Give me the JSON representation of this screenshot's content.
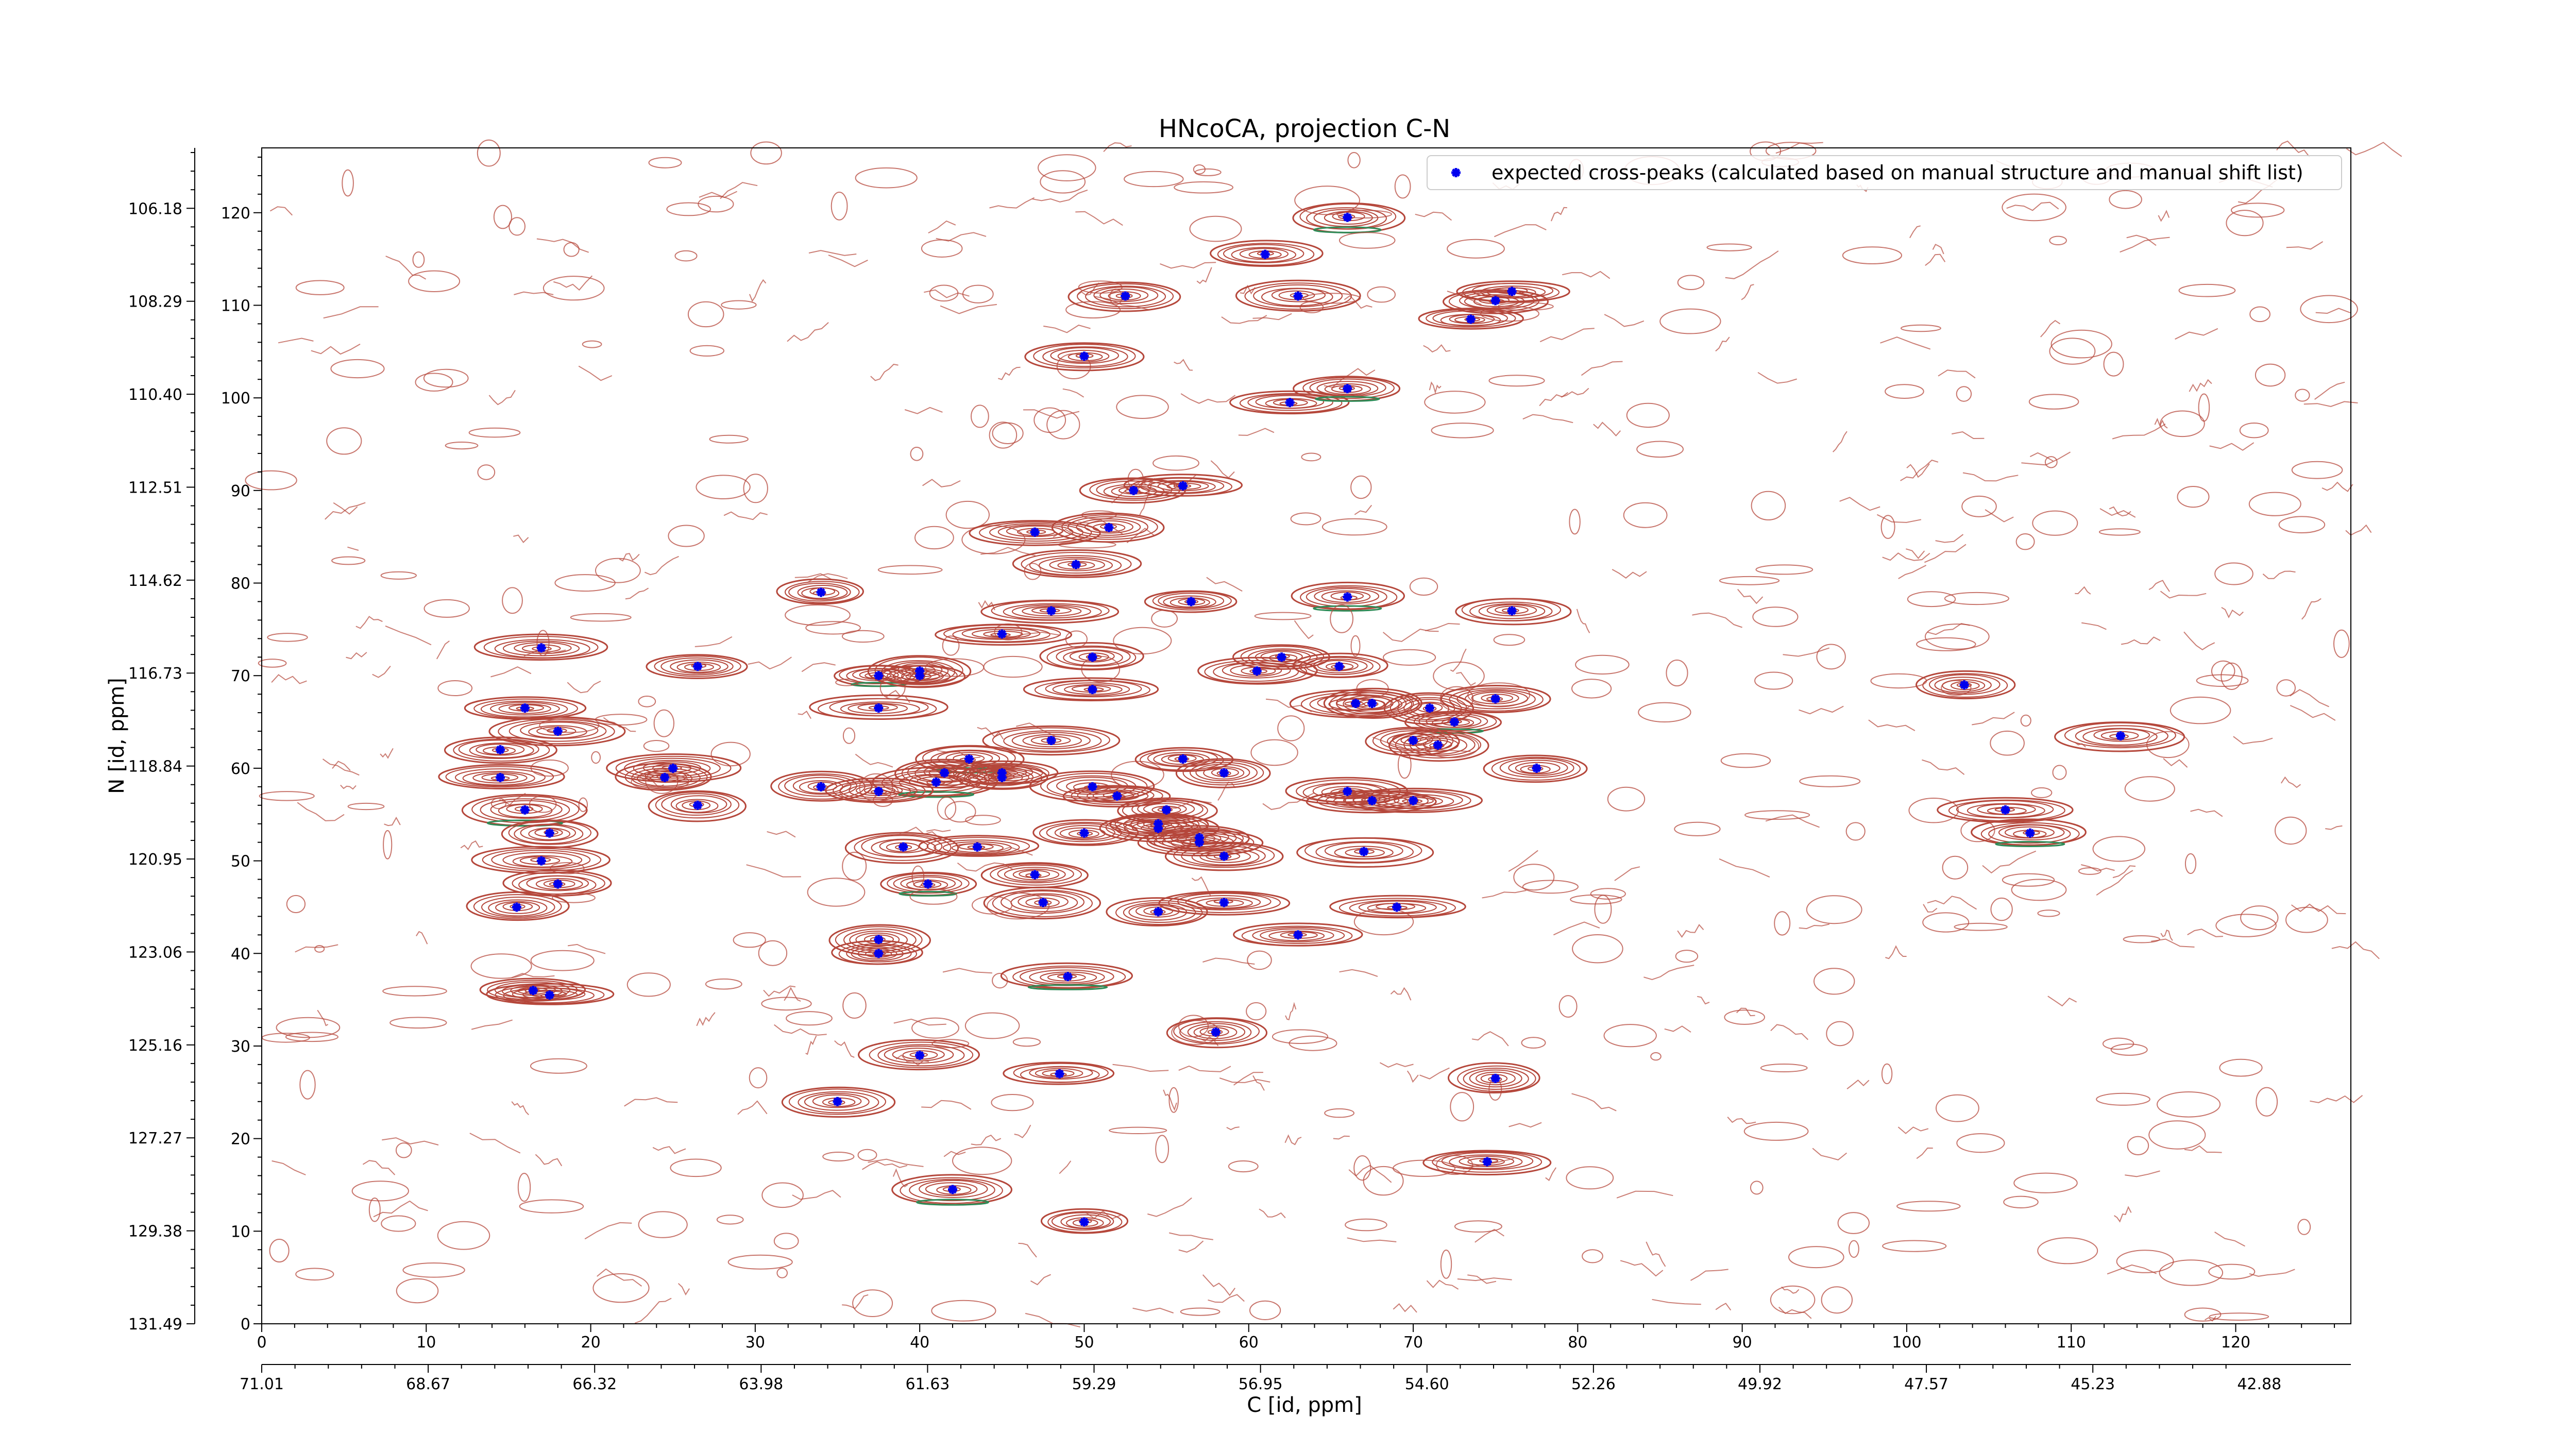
{
  "chart_data": {
    "type": "scatter",
    "title": "HNcoCA, projection C-N",
    "xlabel": "C [id, ppm]",
    "ylabel": "N [id, ppm]",
    "xlim": [
      0,
      127
    ],
    "ylim": [
      0,
      127
    ],
    "x_ticks": [
      "0",
      "10",
      "20",
      "30",
      "40",
      "50",
      "60",
      "70",
      "80",
      "90",
      "100",
      "110",
      "120"
    ],
    "y_ticks": [
      "0",
      "10",
      "20",
      "30",
      "40",
      "50",
      "60",
      "70",
      "80",
      "90",
      "100",
      "110",
      "120"
    ],
    "x_ppm_ticks": [
      "71.01",
      "68.67",
      "66.32",
      "63.98",
      "61.63",
      "59.29",
      "56.95",
      "54.60",
      "52.26",
      "49.92",
      "47.57",
      "45.23",
      "42.88"
    ],
    "y_ppm_ticks": [
      "131.49",
      "129.38",
      "127.27",
      "125.16",
      "123.06",
      "120.95",
      "118.84",
      "116.73",
      "114.62",
      "112.51",
      "110.40",
      "108.29",
      "106.18"
    ],
    "legend": {
      "entries": [
        "expected cross-peaks (calculated based on manual structure and manual shift list)"
      ],
      "placement": "top-right"
    },
    "colors": {
      "peaks": "#0000ee",
      "positive_contour": "#b5473b",
      "negative_contour": "#2e8b57"
    },
    "series": [
      {
        "name": "expected cross-peaks (calculated based on manual structure and manual shift list)",
        "points": [
          [
            66.0,
            119.5
          ],
          [
            61.0,
            115.5
          ],
          [
            52.5,
            111.0
          ],
          [
            63.0,
            111.0
          ],
          [
            73.5,
            108.5
          ],
          [
            75.0,
            110.5
          ],
          [
            76.0,
            111.5
          ],
          [
            50.0,
            104.5
          ],
          [
            62.5,
            99.5
          ],
          [
            66.0,
            101.0
          ],
          [
            53.0,
            90.0
          ],
          [
            56.0,
            90.5
          ],
          [
            47.0,
            85.5
          ],
          [
            51.5,
            86.0
          ],
          [
            49.5,
            82.0
          ],
          [
            34.0,
            79.0
          ],
          [
            48.0,
            77.0
          ],
          [
            56.5,
            78.0
          ],
          [
            66.0,
            78.5
          ],
          [
            76.0,
            77.0
          ],
          [
            45.0,
            74.5
          ],
          [
            17.0,
            73.0
          ],
          [
            26.5,
            71.0
          ],
          [
            50.5,
            72.0
          ],
          [
            62.0,
            72.0
          ],
          [
            65.5,
            71.0
          ],
          [
            60.5,
            70.5
          ],
          [
            37.5,
            70.0
          ],
          [
            40.0,
            70.5
          ],
          [
            40.0,
            70.0
          ],
          [
            50.5,
            68.5
          ],
          [
            103.5,
            69.0
          ],
          [
            66.5,
            67.0
          ],
          [
            67.5,
            67.0
          ],
          [
            71.0,
            66.5
          ],
          [
            75.0,
            67.5
          ],
          [
            72.5,
            65.0
          ],
          [
            16.0,
            66.5
          ],
          [
            37.5,
            66.5
          ],
          [
            18.0,
            64.0
          ],
          [
            48.0,
            63.0
          ],
          [
            70.0,
            63.0
          ],
          [
            71.5,
            62.5
          ],
          [
            113.0,
            63.5
          ],
          [
            14.5,
            62.0
          ],
          [
            43.0,
            61.0
          ],
          [
            56.0,
            61.0
          ],
          [
            58.5,
            59.5
          ],
          [
            77.5,
            60.0
          ],
          [
            14.5,
            59.0
          ],
          [
            25.0,
            60.0
          ],
          [
            24.5,
            59.0
          ],
          [
            41.5,
            59.5
          ],
          [
            45.0,
            59.5
          ],
          [
            41.0,
            58.5
          ],
          [
            45.0,
            59.0
          ],
          [
            34.0,
            58.0
          ],
          [
            37.5,
            57.5
          ],
          [
            50.5,
            58.0
          ],
          [
            52.0,
            57.0
          ],
          [
            66.0,
            57.5
          ],
          [
            67.5,
            56.5
          ],
          [
            70.0,
            56.5
          ],
          [
            16.0,
            55.5
          ],
          [
            26.5,
            56.0
          ],
          [
            55.0,
            55.5
          ],
          [
            54.5,
            54.0
          ],
          [
            54.5,
            53.5
          ],
          [
            57.0,
            52.5
          ],
          [
            57.0,
            52.0
          ],
          [
            50.0,
            53.0
          ],
          [
            106.0,
            55.5
          ],
          [
            107.5,
            53.0
          ],
          [
            17.5,
            53.0
          ],
          [
            39.0,
            51.5
          ],
          [
            43.5,
            51.5
          ],
          [
            67.0,
            51.0
          ],
          [
            58.5,
            50.5
          ],
          [
            17.0,
            50.0
          ],
          [
            18.0,
            47.5
          ],
          [
            47.0,
            48.5
          ],
          [
            40.5,
            47.5
          ],
          [
            15.5,
            45.0
          ],
          [
            47.5,
            45.5
          ],
          [
            54.5,
            44.5
          ],
          [
            58.5,
            45.5
          ],
          [
            69.0,
            45.0
          ],
          [
            63.0,
            42.0
          ],
          [
            37.5,
            41.5
          ],
          [
            37.5,
            40.0
          ],
          [
            49.0,
            37.5
          ],
          [
            16.5,
            36.0
          ],
          [
            17.5,
            35.5
          ],
          [
            58.0,
            31.5
          ],
          [
            40.0,
            29.0
          ],
          [
            48.5,
            27.0
          ],
          [
            75.0,
            26.5
          ],
          [
            35.0,
            24.0
          ],
          [
            74.5,
            17.5
          ],
          [
            42.0,
            14.5
          ],
          [
            50.0,
            11.0
          ]
        ]
      }
    ],
    "grid": false
  }
}
